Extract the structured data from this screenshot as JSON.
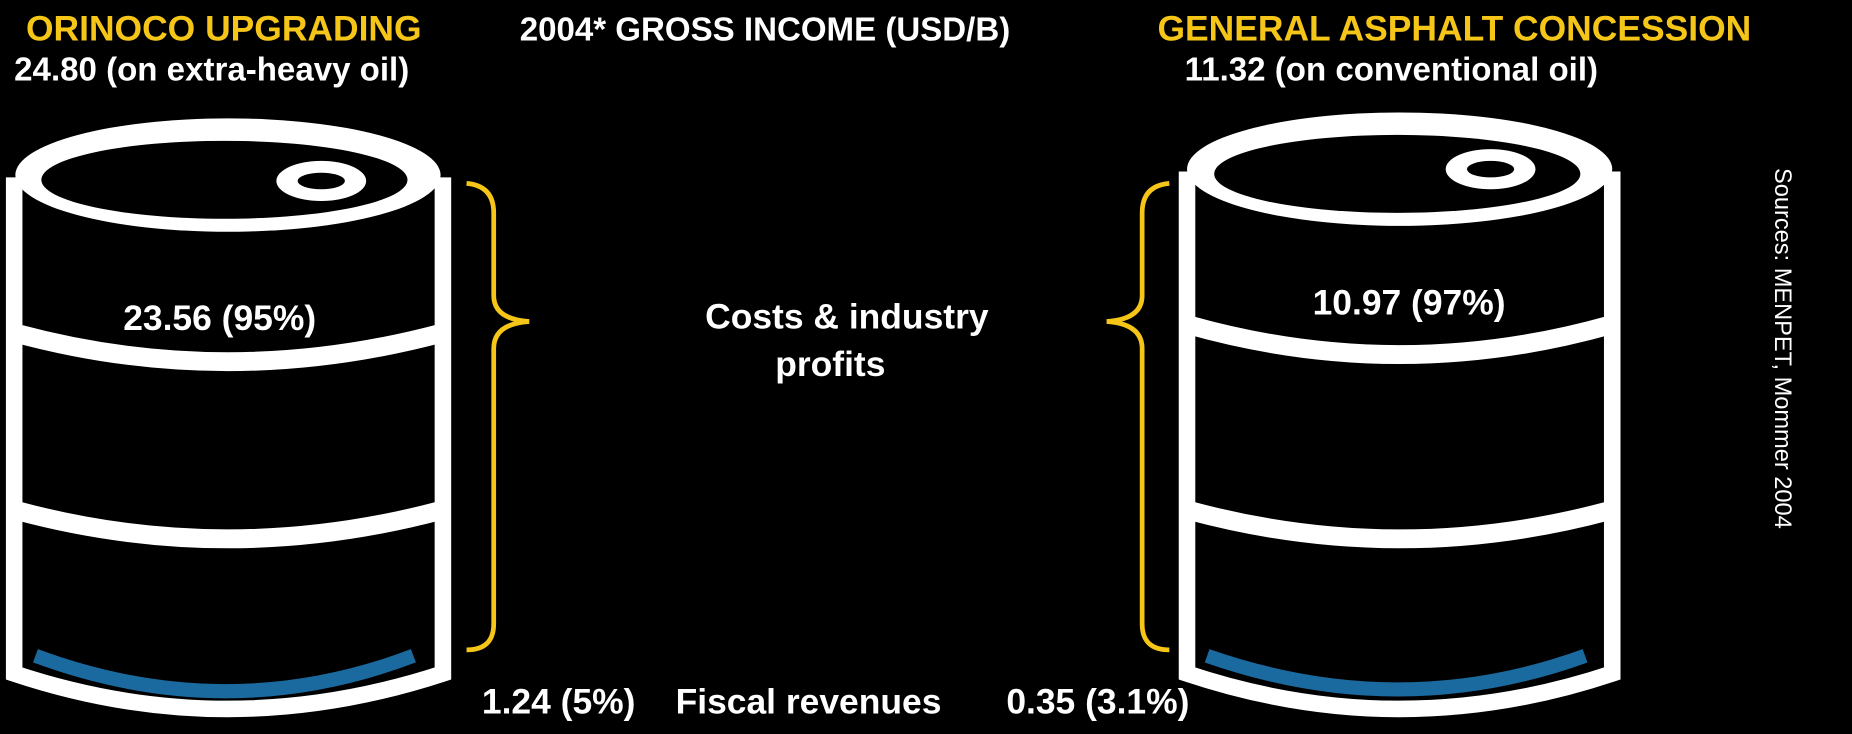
{
  "header": {
    "left_title": "ORINOCO UPGRADING",
    "center_title": "2004* GROSS INCOME  (USD/B)",
    "right_title": "GENERAL ASPHALT CONCESSION"
  },
  "left": {
    "gross": "24.80 (on extra-heavy oil)",
    "costs": "23.56 (95%)",
    "fiscal": "1.24 (5%)"
  },
  "right": {
    "gross": "11.32 (on conventional oil)",
    "costs": "10.97 (97%)",
    "fiscal": "0.35 (3.1%)"
  },
  "center": {
    "costs_label": [
      "Costs & industry",
      "profits"
    ],
    "fiscal_label": "Fiscal revenues"
  },
  "source": "Sources: MENPET, Mommer 2004"
}
